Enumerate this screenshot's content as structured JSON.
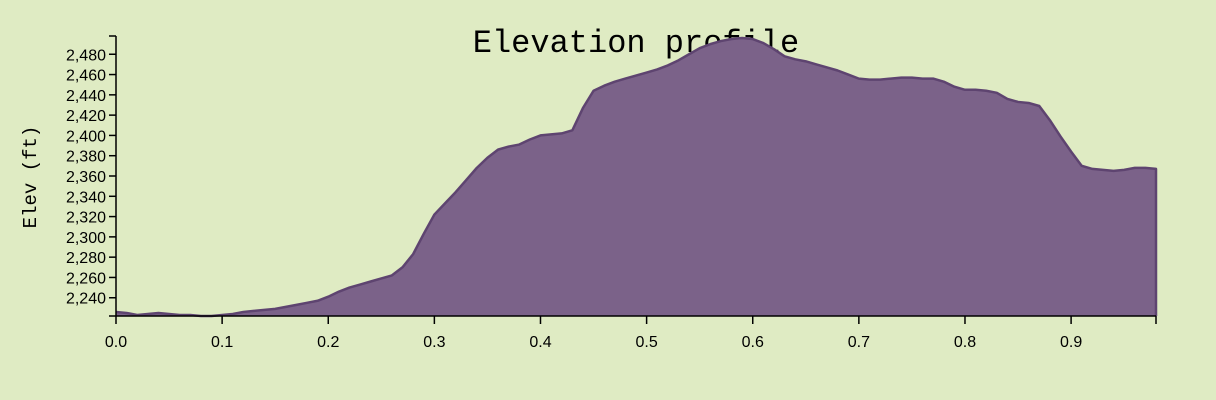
{
  "chart_data": {
    "type": "area",
    "title": "Elevation profile",
    "ylabel": "Elev (ft)",
    "xlabel": "",
    "xlim": [
      0,
      0.98
    ],
    "ylim": [
      2222,
      2498
    ],
    "grid": false,
    "x_ticks": [
      0.0,
      0.1,
      0.2,
      0.3,
      0.4,
      0.5,
      0.6,
      0.7,
      0.8,
      0.9
    ],
    "x_tick_labels": [
      "0.0",
      "0.1",
      "0.2",
      "0.3",
      "0.4",
      "0.5",
      "0.6",
      "0.7",
      "0.8",
      "0.9"
    ],
    "y_ticks": [
      2240,
      2260,
      2280,
      2300,
      2320,
      2340,
      2360,
      2380,
      2400,
      2420,
      2440,
      2460,
      2480
    ],
    "y_tick_labels": [
      "2,240",
      "2,260",
      "2,280",
      "2,300",
      "2,320",
      "2,340",
      "2,360",
      "2,380",
      "2,400",
      "2,420",
      "2,440",
      "2,460",
      "2,480"
    ],
    "fill_color": "#7b6289",
    "line_color": "#5e4470",
    "background": "#dfebc3",
    "x": [
      0,
      0.01,
      0.02,
      0.03,
      0.04,
      0.05,
      0.06,
      0.07,
      0.08,
      0.09,
      0.1,
      0.11,
      0.12,
      0.13,
      0.14,
      0.15,
      0.16,
      0.17,
      0.18,
      0.19,
      0.2,
      0.21,
      0.22,
      0.23,
      0.24,
      0.25,
      0.26,
      0.27,
      0.28,
      0.29,
      0.3,
      0.31,
      0.32,
      0.33,
      0.34,
      0.35,
      0.36,
      0.37,
      0.38,
      0.39,
      0.4,
      0.41,
      0.42,
      0.43,
      0.44,
      0.45,
      0.46,
      0.47,
      0.48,
      0.49,
      0.5,
      0.51,
      0.52,
      0.53,
      0.54,
      0.55,
      0.56,
      0.57,
      0.58,
      0.59,
      0.6,
      0.61,
      0.62,
      0.63,
      0.64,
      0.65,
      0.66,
      0.67,
      0.68,
      0.69,
      0.7,
      0.71,
      0.72,
      0.73,
      0.74,
      0.75,
      0.76,
      0.77,
      0.78,
      0.79,
      0.8,
      0.81,
      0.82,
      0.83,
      0.84,
      0.85,
      0.86,
      0.87,
      0.88,
      0.89,
      0.9,
      0.91,
      0.92,
      0.93,
      0.94,
      0.95,
      0.96,
      0.97,
      0.98
    ],
    "values": [
      2226,
      2225,
      2223,
      2224,
      2225,
      2224,
      2223,
      2223,
      2222,
      2222,
      2223,
      2224,
      2226,
      2227,
      2228,
      2229,
      2231,
      2233,
      2235,
      2237,
      2241,
      2246,
      2250,
      2253,
      2256,
      2259,
      2262,
      2270,
      2283,
      2303,
      2322,
      2333,
      2344,
      2356,
      2368,
      2378,
      2386,
      2389,
      2391,
      2396,
      2400,
      2401,
      2402,
      2405,
      2427,
      2444,
      2449,
      2453,
      2456,
      2459,
      2462,
      2465,
      2469,
      2474,
      2480,
      2486,
      2490,
      2493,
      2495,
      2496,
      2495,
      2491,
      2485,
      2478,
      2475,
      2473,
      2470,
      2467,
      2464,
      2460,
      2456,
      2455,
      2455,
      2456,
      2457,
      2457,
      2456,
      2456,
      2453,
      2448,
      2445,
      2445,
      2444,
      2442,
      2436,
      2433,
      2432,
      2429,
      2415,
      2399,
      2384,
      2370,
      2367,
      2366,
      2365,
      2366,
      2368,
      2368,
      2367
    ]
  }
}
